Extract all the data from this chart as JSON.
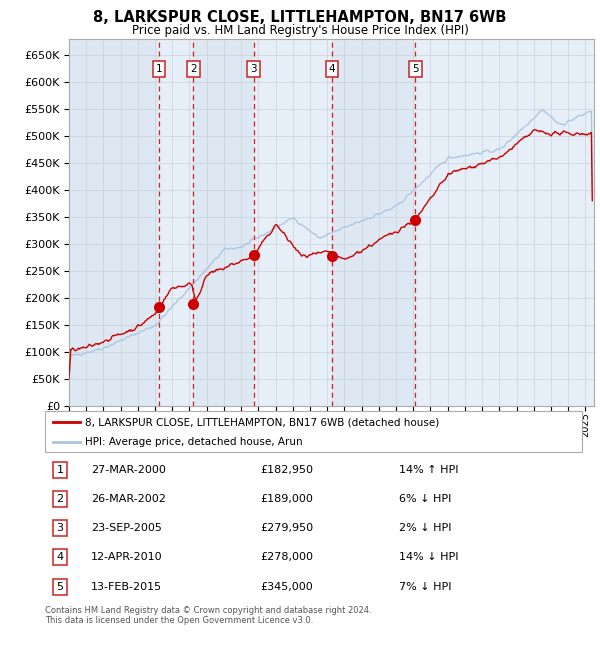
{
  "title1": "8, LARKSPUR CLOSE, LITTLEHAMPTON, BN17 6WB",
  "title2": "Price paid vs. HM Land Registry's House Price Index (HPI)",
  "hpi_color": "#aac4e0",
  "price_color": "#cc0000",
  "grid_color": "#c8d0dc",
  "transactions": [
    {
      "label": "1",
      "year": 2000.23,
      "price": 182950,
      "date": "27-MAR-2000",
      "pct": "14%",
      "dir": "↑"
    },
    {
      "label": "2",
      "year": 2002.23,
      "price": 189000,
      "date": "26-MAR-2002",
      "pct": "6%",
      "dir": "↓"
    },
    {
      "label": "3",
      "year": 2005.73,
      "price": 279950,
      "date": "23-SEP-2005",
      "pct": "2%",
      "dir": "↓"
    },
    {
      "label": "4",
      "year": 2010.28,
      "price": 278000,
      "date": "12-APR-2010",
      "pct": "14%",
      "dir": "↓"
    },
    {
      "label": "5",
      "year": 2015.12,
      "price": 345000,
      "date": "13-FEB-2015",
      "pct": "7%",
      "dir": "↓"
    }
  ],
  "legend_line1": "8, LARKSPUR CLOSE, LITTLEHAMPTON, BN17 6WB (detached house)",
  "legend_line2": "HPI: Average price, detached house, Arun",
  "footer1": "Contains HM Land Registry data © Crown copyright and database right 2024.",
  "footer2": "This data is licensed under the Open Government Licence v3.0.",
  "ylim": [
    0,
    680000
  ],
  "xlim_start": 1995.0,
  "xlim_end": 2025.5
}
